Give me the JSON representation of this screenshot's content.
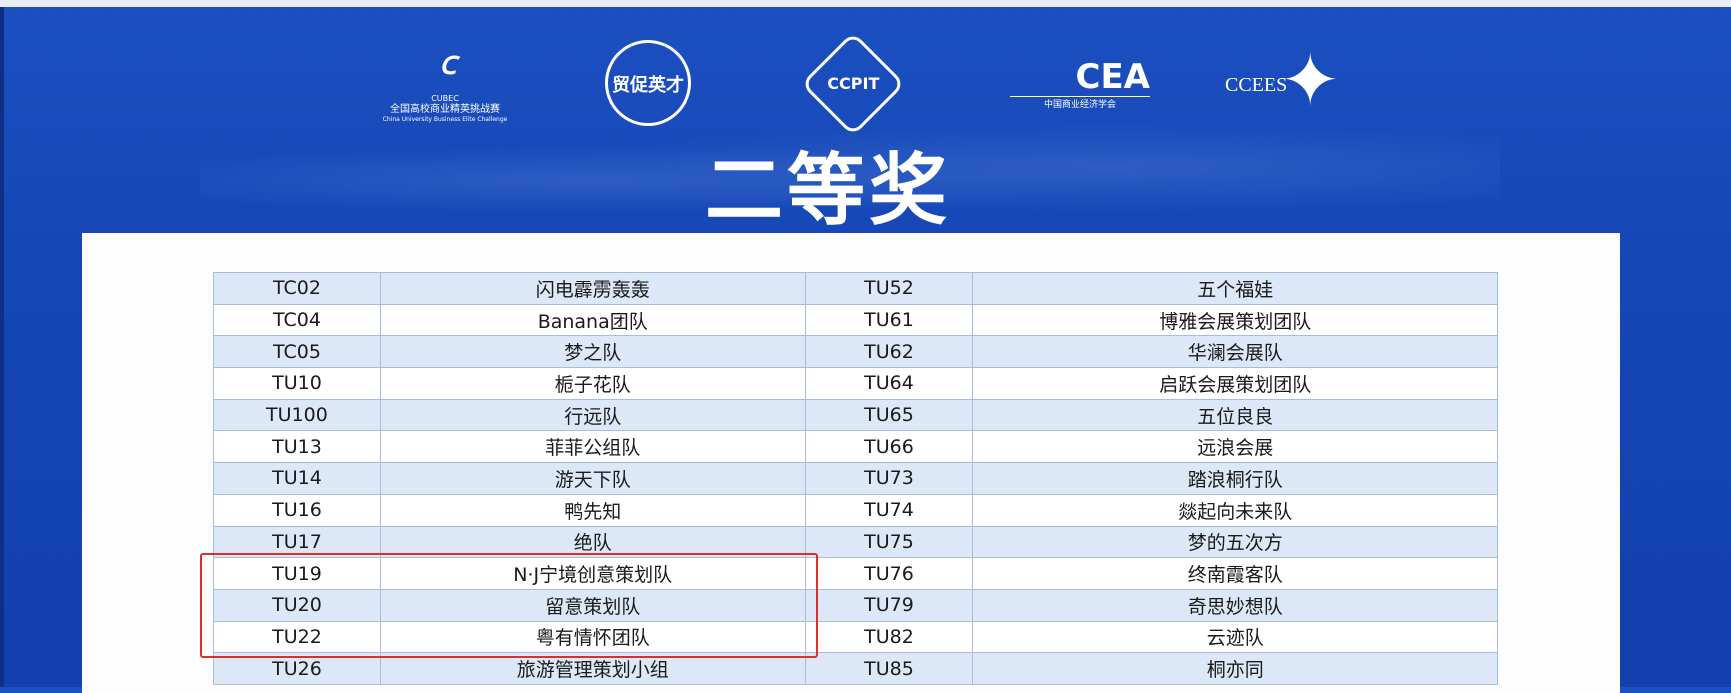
{
  "title": "二等奖",
  "logos": [
    {
      "name": "CUBEC",
      "text": "全国高校商业精英挑战赛",
      "subtext": "China University Business Elite Challenge"
    },
    {
      "name": "贸促英才",
      "text": "贸促英才"
    },
    {
      "name": "CCPIT",
      "text": "CCPIT"
    },
    {
      "name": "CEA",
      "text": "CEA",
      "subtext": "中国商业经济学会"
    },
    {
      "name": "CCEES",
      "text": "CCEES"
    }
  ],
  "rows": [
    {
      "id1": "TC02",
      "name1": "闪电霹雳轰轰",
      "id2": "TU52",
      "name2": "五个福娃"
    },
    {
      "id1": "TC04",
      "name1": "Banana团队",
      "id2": "TU61",
      "name2": "博雅会展策划团队"
    },
    {
      "id1": "TC05",
      "name1": "梦之队",
      "id2": "TU62",
      "name2": "华澜会展队"
    },
    {
      "id1": "TU10",
      "name1": "栀子花队",
      "id2": "TU64",
      "name2": "启跃会展策划团队"
    },
    {
      "id1": "TU100",
      "name1": "行远队",
      "id2": "TU65",
      "name2": "五位良良"
    },
    {
      "id1": "TU13",
      "name1": "菲菲公组队",
      "id2": "TU66",
      "name2": "远浪会展"
    },
    {
      "id1": "TU14",
      "name1": "游天下队",
      "id2": "TU73",
      "name2": "踏浪桐行队"
    },
    {
      "id1": "TU16",
      "name1": "鸭先知",
      "id2": "TU74",
      "name2": "燚起向未来队"
    },
    {
      "id1": "TU17",
      "name1": "绝队",
      "id2": "TU75",
      "name2": "梦的五次方"
    },
    {
      "id1": "TU19",
      "name1": "N·J宁境创意策划队",
      "id2": "TU76",
      "name2": "终南霞客队"
    },
    {
      "id1": "TU20",
      "name1": "留意策划队",
      "id2": "TU79",
      "name2": "奇思妙想队"
    },
    {
      "id1": "TU22",
      "name1": "粤有情怀团队",
      "id2": "TU82",
      "name2": "云迹队"
    },
    {
      "id1": "TU26",
      "name1": "旅游管理策划小组",
      "id2": "TU85",
      "name2": "桐亦同"
    }
  ],
  "highlight": {
    "rows": [
      "TU19",
      "TU20",
      "TU22"
    ],
    "color": "#d9302b"
  }
}
